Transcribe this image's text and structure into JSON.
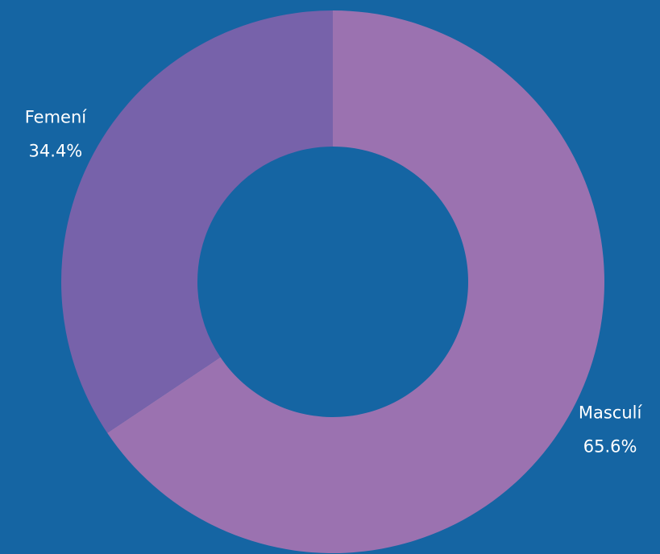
{
  "chart_data": {
    "type": "pie",
    "categories": [
      "Masculí",
      "Femení"
    ],
    "values": [
      65.6,
      34.4
    ],
    "value_labels": [
      "65.6%",
      "34.4%"
    ],
    "colors": [
      "#9b72b0",
      "#7762aa"
    ],
    "donut": true
  }
}
